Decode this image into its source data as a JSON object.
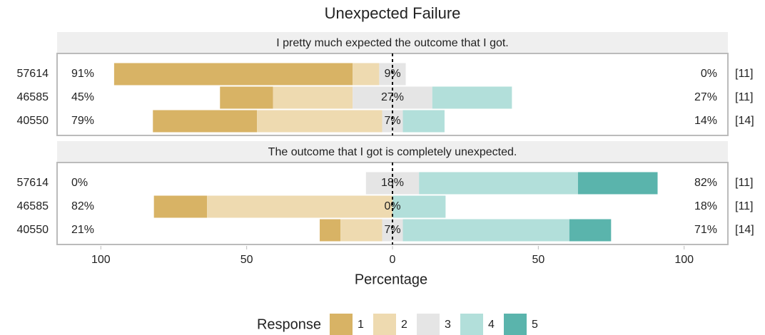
{
  "chart_data": {
    "type": "likert",
    "title": "Unexpected Failure",
    "xlabel": "Percentage",
    "xlim": [
      -115,
      115
    ],
    "xticks": [
      {
        "value": -100,
        "label": "100"
      },
      {
        "value": -50,
        "label": "50"
      },
      0,
      50,
      100
    ],
    "legend_title": "Response",
    "series": [
      {
        "name": "1",
        "color": "#d8b365"
      },
      {
        "name": "2",
        "color": "#eedab0"
      },
      {
        "name": "3",
        "color": "#e5e5e5"
      },
      {
        "name": "4",
        "color": "#b2dfda"
      },
      {
        "name": "5",
        "color": "#5ab4ac"
      }
    ],
    "panels": [
      {
        "title": "I pretty much expected the outcome that I got.",
        "categories": [
          "57614",
          "46585",
          "40550"
        ],
        "values": [
          [
            81.8,
            9.1,
            9.1,
            0,
            0
          ],
          [
            18.2,
            27.3,
            27.3,
            27.3,
            0
          ],
          [
            35.7,
            42.9,
            7.1,
            14.3,
            0
          ]
        ],
        "left_labels": [
          "91%",
          "45%",
          "79%"
        ],
        "center_labels": [
          "9%",
          "27%",
          "7%"
        ],
        "right_labels": [
          "0%",
          "27%",
          "14%"
        ],
        "n_labels": [
          "[11]",
          "[11]",
          "[14]"
        ]
      },
      {
        "title": "The outcome that I got is completely unexpected.",
        "categories": [
          "57614",
          "46585",
          "40550"
        ],
        "values": [
          [
            0,
            0,
            18.2,
            54.5,
            27.3
          ],
          [
            18.2,
            63.6,
            0,
            18.2,
            0
          ],
          [
            7.1,
            14.3,
            7.1,
            57.1,
            14.3
          ]
        ],
        "left_labels": [
          "0%",
          "82%",
          "21%"
        ],
        "center_labels": [
          "18%",
          "0%",
          "7%"
        ],
        "right_labels": [
          "82%",
          "18%",
          "71%"
        ],
        "n_labels": [
          "[11]",
          "[11]",
          "[14]"
        ]
      }
    ]
  }
}
